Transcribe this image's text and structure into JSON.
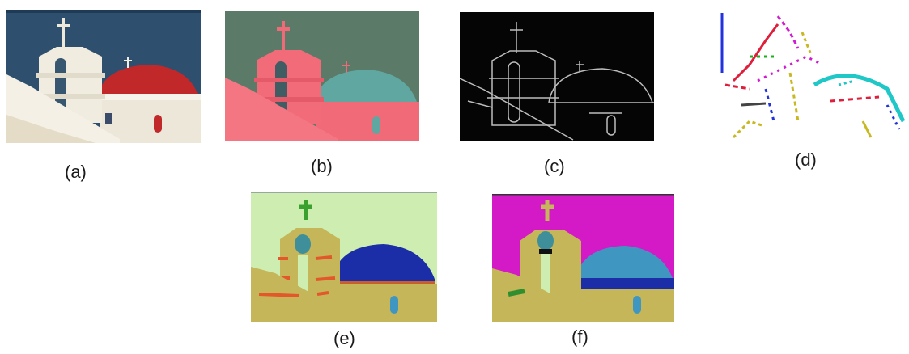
{
  "figure": {
    "panels": [
      {
        "label": "(a)",
        "content": "original"
      },
      {
        "label": "(b)",
        "content": "color-transformed"
      },
      {
        "label": "(c)",
        "content": "edge-map"
      },
      {
        "label": "(d)",
        "content": "colored-edge-segments"
      },
      {
        "label": "(e)",
        "content": "segmentation-result-1"
      },
      {
        "label": "(f)",
        "content": "segmentation-result-2"
      }
    ]
  },
  "colors": {
    "a_sky": "#2f4f6f",
    "a_wall": "#ece7d8",
    "a_dome": "#c0282a",
    "b_bg": "#5c7a68",
    "b_wall": "#f06a78",
    "b_dome": "#5fa7a0",
    "c_bg": "#050505",
    "c_edge": "#bdbdbd",
    "e_bg": "#cdeeb0",
    "e_wall": "#c6b65a",
    "e_dome": "#1b2ea8",
    "f_bg": "#d419c6",
    "f_wall": "#c6b65a",
    "f_dome": "#3f97c1"
  }
}
